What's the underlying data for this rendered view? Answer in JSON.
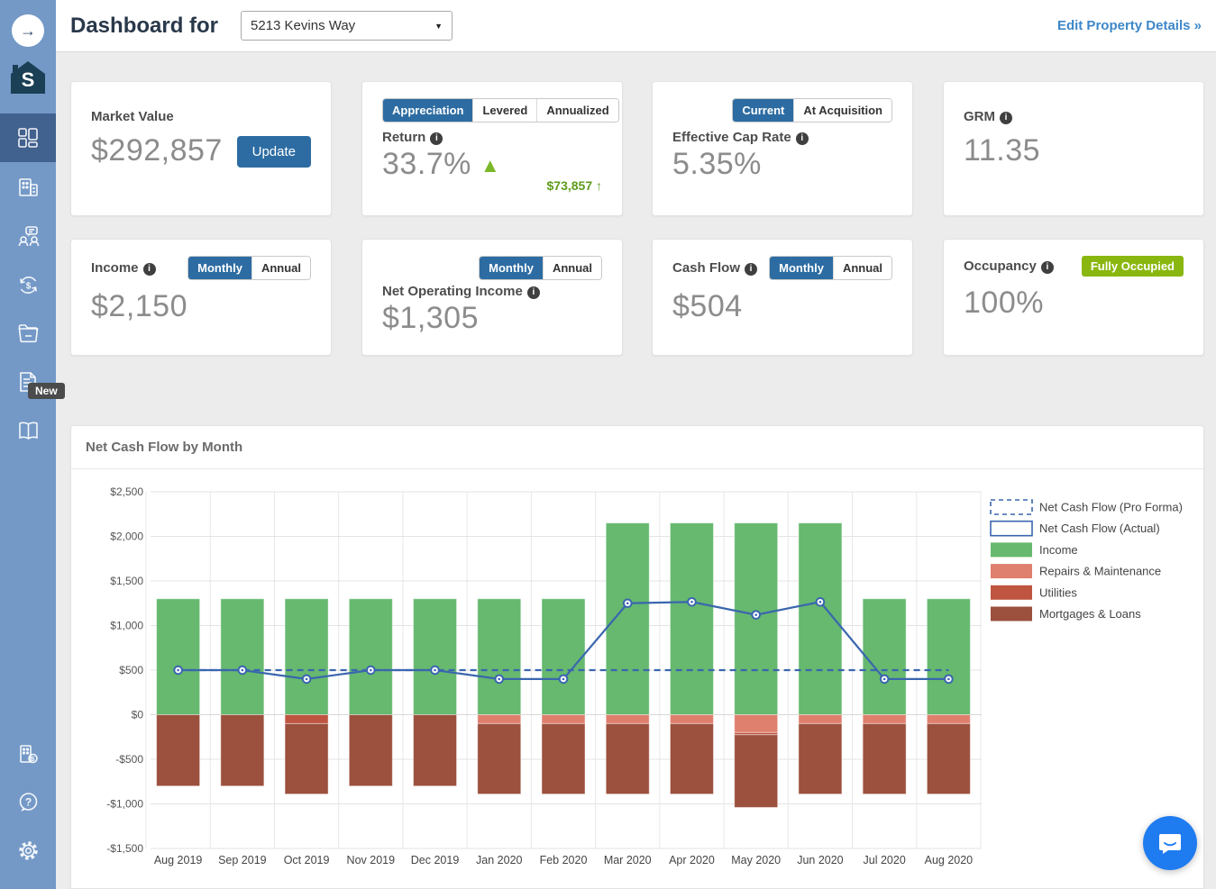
{
  "glyphs": {
    "nav_arrow": "→",
    "logo_letter": "S",
    "caret": "▼",
    "info": "i",
    "up_triangle": "▲",
    "up_arrow": "↑",
    "help_mark": "?",
    "dollar": "$"
  },
  "sidebar": {
    "badge_new": "New",
    "items": [
      "dashboard",
      "properties",
      "tenants",
      "transactions",
      "documents",
      "reports",
      "manual"
    ],
    "bottom_items": [
      "valuation",
      "help",
      "settings"
    ]
  },
  "header": {
    "title": "Dashboard for",
    "property": "5213 Kevins Way",
    "edit_link": "Edit Property Details »"
  },
  "cards": {
    "market_value": {
      "label": "Market Value",
      "value": "$292,857",
      "button": "Update"
    },
    "return": {
      "tabs": [
        "Appreciation",
        "Levered",
        "Annualized"
      ],
      "label": "Return",
      "value": "33.7%",
      "delta": "$73,857"
    },
    "cap_rate": {
      "tabs": [
        "Current",
        "At Acquisition"
      ],
      "label": "Effective Cap Rate",
      "value": "5.35%"
    },
    "grm": {
      "label": "GRM",
      "value": "11.35"
    },
    "income": {
      "label": "Income",
      "tabs": [
        "Monthly",
        "Annual"
      ],
      "value": "$2,150"
    },
    "noi": {
      "label": "Net Operating Income",
      "tabs": [
        "Monthly",
        "Annual"
      ],
      "value": "$1,305"
    },
    "cash_flow": {
      "label": "Cash Flow",
      "tabs": [
        "Monthly",
        "Annual"
      ],
      "value": "$504"
    },
    "occupancy": {
      "label": "Occupancy",
      "badge": "Fully Occupied",
      "value": "100%"
    }
  },
  "chart_panel": {
    "title": "Net Cash Flow by Month"
  },
  "chart_data": {
    "type": "combo-stacked-bar-line",
    "title": "Net Cash Flow by Month",
    "categories": [
      "Aug 2019",
      "Sep 2019",
      "Oct 2019",
      "Nov 2019",
      "Dec 2019",
      "Jan 2020",
      "Feb 2020",
      "Mar 2020",
      "Apr 2020",
      "May 2020",
      "Jun 2020",
      "Jul 2020",
      "Aug 2020"
    ],
    "bar_series": [
      {
        "name": "Income",
        "color": "#66b96f",
        "values": [
          1300,
          1300,
          1300,
          1300,
          1300,
          1300,
          1300,
          2150,
          2150,
          2150,
          2150,
          1300,
          1300
        ]
      },
      {
        "name": "Repairs & Maintenance",
        "color": "#df7f6d",
        "values": [
          0,
          0,
          0,
          0,
          0,
          -100,
          -100,
          -100,
          -100,
          -200,
          -100,
          -100,
          -100
        ]
      },
      {
        "name": "Utilities",
        "color": "#bf5540",
        "values": [
          0,
          0,
          -100,
          0,
          0,
          0,
          0,
          0,
          0,
          -25,
          0,
          0,
          0
        ]
      },
      {
        "name": "Mortgages & Loans",
        "color": "#9c503e",
        "values": [
          -800,
          -800,
          -790,
          -800,
          -800,
          -790,
          -790,
          -790,
          -790,
          -815,
          -790,
          -790,
          -790
        ]
      }
    ],
    "line_series": [
      {
        "name": "Net Cash Flow (Pro Forma)",
        "style": "dashed",
        "color": "#3a66ae",
        "values": [
          500,
          500,
          500,
          500,
          500,
          500,
          500,
          500,
          500,
          500,
          500,
          500,
          500
        ]
      },
      {
        "name": "Net Cash Flow (Actual)",
        "style": "solid",
        "color": "#3a66ae",
        "points": true,
        "values": [
          500,
          500,
          400,
          500,
          500,
          400,
          400,
          1250,
          1265,
          1120,
          1265,
          400,
          400
        ]
      }
    ],
    "legend": [
      {
        "label": "Net Cash Flow (Pro Forma)",
        "swatch": "dashed-outline",
        "color": "#3a66ae"
      },
      {
        "label": "Net Cash Flow (Actual)",
        "swatch": "outline",
        "color": "#3a66ae"
      },
      {
        "label": "Income",
        "swatch": "fill",
        "color": "#66b96f"
      },
      {
        "label": "Repairs & Maintenance",
        "swatch": "fill",
        "color": "#df7f6d"
      },
      {
        "label": "Utilities",
        "swatch": "fill",
        "color": "#bf5540"
      },
      {
        "label": "Mortgages & Loans",
        "swatch": "fill",
        "color": "#9c503e"
      }
    ],
    "legend_position": "right",
    "grid": true,
    "ylim": [
      -1500,
      2500
    ],
    "yticks": [
      {
        "value": 2500,
        "label": "$2,500"
      },
      {
        "value": 2000,
        "label": "$2,000"
      },
      {
        "value": 1500,
        "label": "$1,500"
      },
      {
        "value": 1000,
        "label": "$1,000"
      },
      {
        "value": 500,
        "label": "$500"
      },
      {
        "value": 0,
        "label": "$0"
      },
      {
        "value": -500,
        "label": "-$500"
      },
      {
        "value": -1000,
        "label": "-$1,000"
      },
      {
        "value": -1500,
        "label": "-$1,500"
      }
    ]
  }
}
